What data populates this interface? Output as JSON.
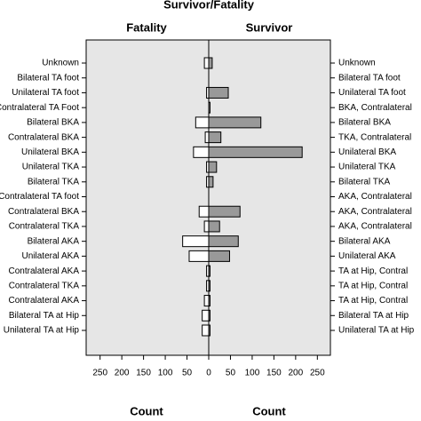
{
  "chart_data": {
    "type": "pyramid",
    "title": "Survivor/Fatality",
    "categories": [
      "Unknown",
      "Bilateral TA foot",
      "Unilateral TA foot",
      "Contralateral TA Foot",
      "Bilateral BKA",
      "Contralateral BKA",
      "Unilateral BKA",
      "Unilateral TKA",
      "Bilateral TKA",
      "Contralateral TA foot",
      "Contralateral BKA",
      "Contralateral TKA",
      "Bilateral AKA",
      "Unilateral AKA",
      "Contralateral AKA",
      "Contralateral TKA",
      "Contralateral AKA",
      "Bilateral TA at Hip",
      "Unilateral TA at Hip"
    ],
    "categories_right": [
      "Unknown",
      "Bilateral TA foot",
      "Unilateral TA foot",
      "BKA, Contralateral",
      "Bilateral BKA",
      "TKA, Contralateral",
      "Unilateral BKA",
      "Unilateral TKA",
      "Bilateral TKA",
      "AKA, Contralateral",
      "AKA, Contralateral",
      "AKA, Contralateral",
      "Bilateral AKA",
      "Unilateral AKA",
      "TA at Hip, Contral",
      "TA at Hip, Contral",
      "TA at Hip, Contral",
      "Bilateral TA at Hip",
      "Unilateral TA at Hip"
    ],
    "series": [
      {
        "name": "Fatality",
        "color": "#ffffff",
        "values": [
          10,
          0,
          5,
          0,
          30,
          8,
          35,
          5,
          5,
          0,
          22,
          10,
          60,
          45,
          5,
          5,
          10,
          15,
          15
        ]
      },
      {
        "name": "Survivor",
        "color": "#999999",
        "values": [
          8,
          0,
          45,
          3,
          120,
          28,
          215,
          18,
          10,
          0,
          72,
          25,
          68,
          48,
          3,
          3,
          3,
          3,
          3
        ]
      }
    ],
    "xlim": [
      0,
      280
    ],
    "xticks": [
      0,
      50,
      100,
      150,
      200,
      250
    ],
    "xlabel": "Count"
  }
}
